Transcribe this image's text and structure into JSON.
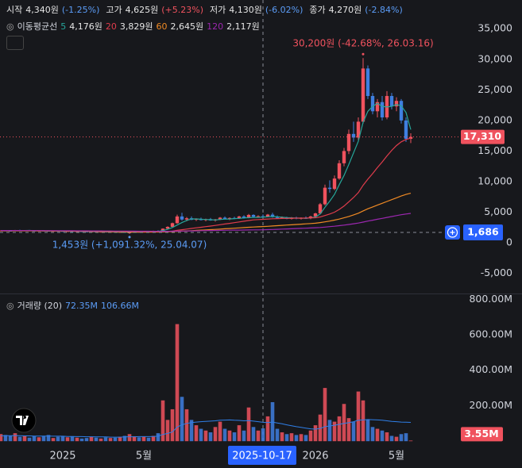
{
  "chart_data": [
    {
      "type": "candlestick",
      "header": [
        {
          "label": "시작",
          "value": "4,340원",
          "change": "(-1.25%)",
          "color": "#5b9cf6"
        },
        {
          "label": "고가",
          "value": "4,625원",
          "change": "(+5.23%)",
          "color": "#f0525e"
        },
        {
          "label": "저가",
          "value": "4,130원",
          "change": "(-6.02%)",
          "color": "#5b9cf6"
        },
        {
          "label": "종가",
          "value": "4,270원",
          "change": "(-2.84%)",
          "color": "#5b9cf6"
        }
      ],
      "legend_title": "이동평균선",
      "categories": [
        null,
        null,
        null,
        null,
        null,
        null,
        null,
        null,
        null,
        null,
        null,
        null,
        null,
        "2025",
        null,
        null,
        null,
        null,
        null,
        null,
        null,
        null,
        null,
        null,
        null,
        null,
        null,
        null,
        null,
        null,
        "5월",
        null,
        null,
        null,
        null,
        null,
        null,
        null,
        null,
        null,
        null,
        null,
        null,
        null,
        null,
        null,
        null,
        null,
        null,
        null,
        null,
        null,
        null,
        null,
        null,
        "2025-10-17",
        null,
        null,
        null,
        null,
        null,
        null,
        null,
        null,
        null,
        null,
        "2026",
        null,
        null,
        null,
        null,
        null,
        null,
        null,
        null,
        null,
        null,
        null,
        null,
        null,
        null,
        null,
        null,
        "5월",
        null,
        null,
        null
      ],
      "ohlc": [
        [
          1950,
          2050,
          1900,
          2000
        ],
        [
          2000,
          2080,
          1930,
          1960
        ],
        [
          1960,
          2020,
          1880,
          1920
        ],
        [
          1920,
          2100,
          1900,
          2050
        ],
        [
          2050,
          2120,
          1960,
          1990
        ],
        [
          1990,
          2060,
          1930,
          2030
        ],
        [
          2030,
          2090,
          1950,
          1970
        ],
        [
          1970,
          2000,
          1880,
          1910
        ],
        [
          1910,
          2010,
          1890,
          1980
        ],
        [
          1980,
          2040,
          1900,
          1940
        ],
        [
          1940,
          1990,
          1850,
          1880
        ],
        [
          1880,
          1960,
          1840,
          1930
        ],
        [
          1930,
          1990,
          1870,
          1900
        ],
        [
          1900,
          1950,
          1820,
          1850
        ],
        [
          1850,
          1920,
          1800,
          1890
        ],
        [
          1890,
          1930,
          1790,
          1820
        ],
        [
          1820,
          1900,
          1780,
          1860
        ],
        [
          1860,
          1910,
          1800,
          1830
        ],
        [
          1830,
          1880,
          1760,
          1790
        ],
        [
          1790,
          1860,
          1750,
          1820
        ],
        [
          1820,
          1870,
          1740,
          1760
        ],
        [
          1760,
          1830,
          1720,
          1800
        ],
        [
          1800,
          1840,
          1700,
          1730
        ],
        [
          1730,
          1810,
          1690,
          1780
        ],
        [
          1780,
          1820,
          1680,
          1710
        ],
        [
          1710,
          1790,
          1660,
          1750
        ],
        [
          1750,
          1780,
          1600,
          1640
        ],
        [
          1640,
          1720,
          1453,
          1690
        ],
        [
          1690,
          1800,
          1660,
          1770
        ],
        [
          1770,
          1850,
          1720,
          1740
        ],
        [
          1740,
          1880,
          1720,
          1850
        ],
        [
          1850,
          1920,
          1790,
          1820
        ],
        [
          1820,
          1980,
          1800,
          1950
        ],
        [
          1950,
          2050,
          1880,
          1920
        ],
        [
          1920,
          2350,
          1900,
          2300
        ],
        [
          2300,
          2700,
          2250,
          2600
        ],
        [
          2600,
          3300,
          2550,
          3200
        ],
        [
          3200,
          4600,
          3100,
          4300
        ],
        [
          4300,
          4900,
          3600,
          3800
        ],
        [
          3800,
          4200,
          3500,
          4000
        ],
        [
          4000,
          4300,
          3700,
          3750
        ],
        [
          3750,
          4000,
          3550,
          3900
        ],
        [
          3900,
          4100,
          3650,
          3700
        ],
        [
          3700,
          3950,
          3500,
          3850
        ],
        [
          3850,
          4050,
          3600,
          3650
        ],
        [
          3650,
          3900,
          3450,
          3800
        ],
        [
          3800,
          4200,
          3700,
          4100
        ],
        [
          4100,
          4300,
          3850,
          3900
        ],
        [
          3900,
          4150,
          3700,
          4050
        ],
        [
          4050,
          4250,
          3850,
          3950
        ],
        [
          3950,
          4400,
          3900,
          4300
        ],
        [
          4300,
          4500,
          3950,
          4050
        ],
        [
          4050,
          4700,
          4000,
          4550
        ],
        [
          4550,
          4650,
          4150,
          4250
        ],
        [
          4250,
          4500,
          4100,
          4340
        ],
        [
          4340,
          4625,
          4130,
          4270
        ],
        [
          4270,
          4700,
          4200,
          4600
        ],
        [
          4600,
          4900,
          4100,
          4200
        ],
        [
          4200,
          4450,
          3950,
          4050
        ],
        [
          4050,
          4300,
          3900,
          4150
        ],
        [
          4150,
          4250,
          3850,
          3900
        ],
        [
          3900,
          4200,
          3800,
          4100
        ],
        [
          4100,
          4250,
          3850,
          3950
        ],
        [
          3950,
          4150,
          3800,
          4050
        ],
        [
          4050,
          4300,
          3900,
          4000
        ],
        [
          4000,
          4400,
          3850,
          4300
        ],
        [
          4300,
          4900,
          4200,
          4800
        ],
        [
          4800,
          6500,
          4700,
          6300
        ],
        [
          6300,
          9500,
          6100,
          9000
        ],
        [
          9000,
          10200,
          8200,
          8800
        ],
        [
          8800,
          11000,
          8600,
          10500
        ],
        [
          10500,
          13500,
          10300,
          13000
        ],
        [
          13000,
          15500,
          12500,
          15000
        ],
        [
          15000,
          18500,
          14500,
          17800
        ],
        [
          17800,
          19800,
          16500,
          17200
        ],
        [
          17200,
          20500,
          16800,
          19800
        ],
        [
          19800,
          30200,
          19500,
          28500
        ],
        [
          28500,
          29000,
          23500,
          24000
        ],
        [
          24000,
          24500,
          21000,
          21500
        ],
        [
          21500,
          23500,
          20500,
          23000
        ],
        [
          23000,
          24000,
          20000,
          20500
        ],
        [
          20500,
          24800,
          20200,
          24000
        ],
        [
          24000,
          24500,
          21800,
          22300
        ],
        [
          22300,
          23800,
          21500,
          23200
        ],
        [
          23200,
          23500,
          19500,
          20000
        ],
        [
          20000,
          20500,
          16500,
          17000
        ],
        [
          17000,
          17900,
          16300,
          17310
        ]
      ],
      "up_color": "#f0525e",
      "down_color": "#3f7fe0",
      "series": [
        {
          "name": "5",
          "legend_value": "4,176원",
          "color": "#26a69a",
          "values": [
            1980,
            1990,
            1970,
            1980,
            1990,
            2000,
            2010,
            1990,
            1970,
            1960,
            1940,
            1930,
            1920,
            1910,
            1890,
            1870,
            1860,
            1850,
            1840,
            1820,
            1810,
            1800,
            1780,
            1770,
            1760,
            1750,
            1730,
            1710,
            1720,
            1730,
            1760,
            1780,
            1830,
            1860,
            1990,
            2200,
            2500,
            2900,
            3300,
            3650,
            3900,
            3900,
            3840,
            3800,
            3770,
            3730,
            3800,
            3850,
            3880,
            3950,
            3980,
            4050,
            4100,
            4140,
            4160,
            4176,
            4250,
            4300,
            4250,
            4180,
            4100,
            4080,
            4030,
            4020,
            4000,
            4060,
            4200,
            4700,
            5800,
            6800,
            7900,
            9500,
            11000,
            12800,
            14700,
            16600,
            19700,
            21500,
            22300,
            22800,
            22300,
            22200,
            22300,
            22600,
            22400,
            21300,
            18500
          ]
        },
        {
          "name": "20",
          "legend_value": "3,829원",
          "color": "#e03c4c",
          "values": [
            1990,
            1990,
            1985,
            1985,
            1985,
            1990,
            1985,
            1980,
            1975,
            1970,
            1960,
            1950,
            1940,
            1930,
            1915,
            1900,
            1890,
            1880,
            1870,
            1860,
            1845,
            1830,
            1820,
            1810,
            1800,
            1790,
            1775,
            1760,
            1750,
            1745,
            1740,
            1740,
            1745,
            1755,
            1780,
            1830,
            1910,
            2030,
            2130,
            2240,
            2340,
            2440,
            2530,
            2630,
            2730,
            2830,
            2950,
            3060,
            3170,
            3280,
            3400,
            3520,
            3640,
            3740,
            3790,
            3829,
            3880,
            3920,
            3950,
            3970,
            3990,
            4010,
            4020,
            4030,
            4040,
            4060,
            4090,
            4200,
            4450,
            4700,
            5000,
            5450,
            6000,
            6700,
            7400,
            8200,
            9400,
            10400,
            11300,
            12300,
            13200,
            14200,
            15100,
            15900,
            16500,
            16900,
            17100
          ]
        },
        {
          "name": "60",
          "legend_value": "2,645원",
          "color": "#f08a24",
          "values": [
            1950,
            1950,
            1950,
            1950,
            1950,
            1950,
            1950,
            1950,
            1945,
            1940,
            1935,
            1930,
            1925,
            1920,
            1915,
            1910,
            1905,
            1900,
            1895,
            1890,
            1880,
            1870,
            1860,
            1850,
            1840,
            1830,
            1820,
            1810,
            1800,
            1795,
            1790,
            1785,
            1780,
            1780,
            1785,
            1800,
            1820,
            1860,
            1900,
            1940,
            1980,
            2020,
            2060,
            2100,
            2140,
            2180,
            2230,
            2280,
            2330,
            2380,
            2430,
            2480,
            2530,
            2570,
            2610,
            2645,
            2690,
            2740,
            2790,
            2840,
            2890,
            2940,
            2990,
            3040,
            3090,
            3140,
            3200,
            3300,
            3420,
            3550,
            3700,
            3870,
            4070,
            4300,
            4550,
            4830,
            5200,
            5550,
            5850,
            6150,
            6450,
            6750,
            7050,
            7350,
            7650,
            7900,
            8100
          ]
        },
        {
          "name": "120",
          "legend_value": "2,117원",
          "color": "#9c27b0",
          "values": [
            2000,
            2000,
            2000,
            1995,
            1995,
            1990,
            1990,
            1985,
            1985,
            1980,
            1980,
            1975,
            1975,
            1970,
            1965,
            1960,
            1955,
            1950,
            1945,
            1940,
            1935,
            1930,
            1925,
            1920,
            1915,
            1910,
            1905,
            1900,
            1895,
            1890,
            1885,
            1880,
            1875,
            1870,
            1870,
            1875,
            1880,
            1895,
            1910,
            1925,
            1940,
            1955,
            1970,
            1985,
            2000,
            2010,
            2025,
            2040,
            2050,
            2060,
            2070,
            2080,
            2090,
            2100,
            2110,
            2117,
            2140,
            2170,
            2200,
            2230,
            2260,
            2290,
            2320,
            2350,
            2380,
            2410,
            2450,
            2500,
            2560,
            2630,
            2700,
            2790,
            2880,
            2990,
            3100,
            3220,
            3380,
            3540,
            3690,
            3840,
            3990,
            4140,
            4290,
            4440,
            4580,
            4700,
            4800
          ]
        }
      ],
      "ylim": [
        -8300,
        39700
      ],
      "yticks": [
        {
          "value": 35000,
          "label": "35,000"
        },
        {
          "value": 30000,
          "label": "30,000"
        },
        {
          "value": 25000,
          "label": "25,000"
        },
        {
          "value": 20000,
          "label": "20,000"
        },
        {
          "value": 15000,
          "label": "15,000"
        },
        {
          "value": 10000,
          "label": "10,000"
        },
        {
          "value": 5000,
          "label": "5,000"
        },
        0,
        {
          "value": -5000,
          "label": "-5,000"
        }
      ],
      "last_price_label": "17,310",
      "crosshair_price": {
        "value": 1686,
        "label": "1,686"
      },
      "high_label": "30,200원 (-42.68%, 26.03.16)",
      "low_label": "1,453원 (+1,091.32%, 25.04.07)"
    },
    {
      "type": "bar",
      "name": "거래량 (20)",
      "legend_values": [
        "72.35M",
        "106.66M"
      ],
      "values": [
        40,
        35,
        30,
        45,
        25,
        30,
        20,
        28,
        22,
        30,
        35,
        18,
        25,
        30,
        22,
        28,
        20,
        15,
        18,
        25,
        20,
        15,
        22,
        18,
        20,
        25,
        30,
        40,
        28,
        22,
        25,
        20,
        30,
        45,
        230,
        120,
        180,
        660,
        250,
        180,
        120,
        90,
        70,
        60,
        50,
        80,
        110,
        70,
        60,
        50,
        90,
        60,
        190,
        80,
        60,
        72.35,
        140,
        220,
        70,
        50,
        40,
        45,
        35,
        40,
        35,
        60,
        90,
        150,
        300,
        120,
        110,
        140,
        210,
        130,
        110,
        280,
        230,
        120,
        80,
        70,
        60,
        50,
        30,
        25,
        40,
        45,
        3.55
      ],
      "ma_values": [
        30,
        31,
        31,
        32,
        31,
        30,
        30,
        29,
        29,
        29,
        29,
        28,
        28,
        28,
        27,
        27,
        26,
        26,
        25,
        25,
        24,
        24,
        24,
        23,
        23,
        23,
        24,
        25,
        25,
        26,
        26,
        26,
        27,
        28,
        38,
        44,
        52,
        80,
        92,
        100,
        105,
        108,
        110,
        112,
        113,
        115,
        118,
        119,
        120,
        118,
        117,
        115,
        116,
        113,
        110,
        106.66,
        105,
        108,
        103,
        98,
        92,
        87,
        82,
        78,
        74,
        70,
        68,
        72,
        82,
        86,
        90,
        95,
        100,
        104,
        110,
        118,
        120,
        122,
        121,
        120,
        118,
        115,
        112,
        110,
        108,
        107,
        106
      ],
      "ma_color": "#2f7fe8",
      "ylim": [
        -8,
        828
      ],
      "yticks": [
        {
          "value": 800,
          "label": "800.00M"
        },
        {
          "value": 600,
          "label": "600.00M"
        },
        {
          "value": 400,
          "label": "400.00M"
        },
        {
          "value": 200,
          "label": "200.00M"
        }
      ],
      "last_value_label": "3.55M"
    }
  ]
}
